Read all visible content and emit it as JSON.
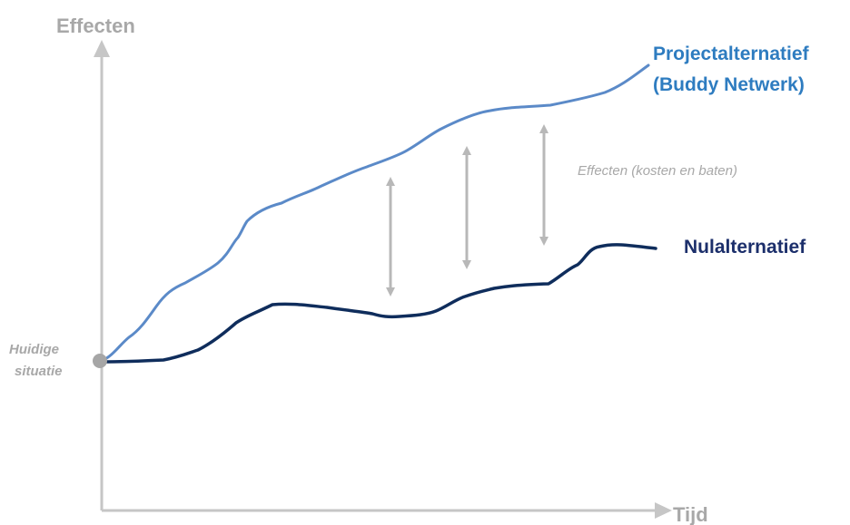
{
  "axes": {
    "y_label": "Effecten",
    "x_label": "Tijd"
  },
  "start": {
    "label_line1": "Huidige",
    "label_line2": "situatie"
  },
  "project": {
    "label_line1": "Projectalternatief",
    "label_line2": "(Buddy Netwerk)",
    "color": "#5b8ac8",
    "label_color": "#2e7cc0"
  },
  "nul": {
    "label": "Nulalternatief",
    "color": "#0f2d5c",
    "label_color": "#1c2f6b"
  },
  "effects_label": "Effecten (kosten en baten)",
  "colors": {
    "axis": "#c6c6c6",
    "axis_text": "#a8a8a8",
    "arrow": "#b8b8b8",
    "start_dot": "#a6a6a6"
  }
}
